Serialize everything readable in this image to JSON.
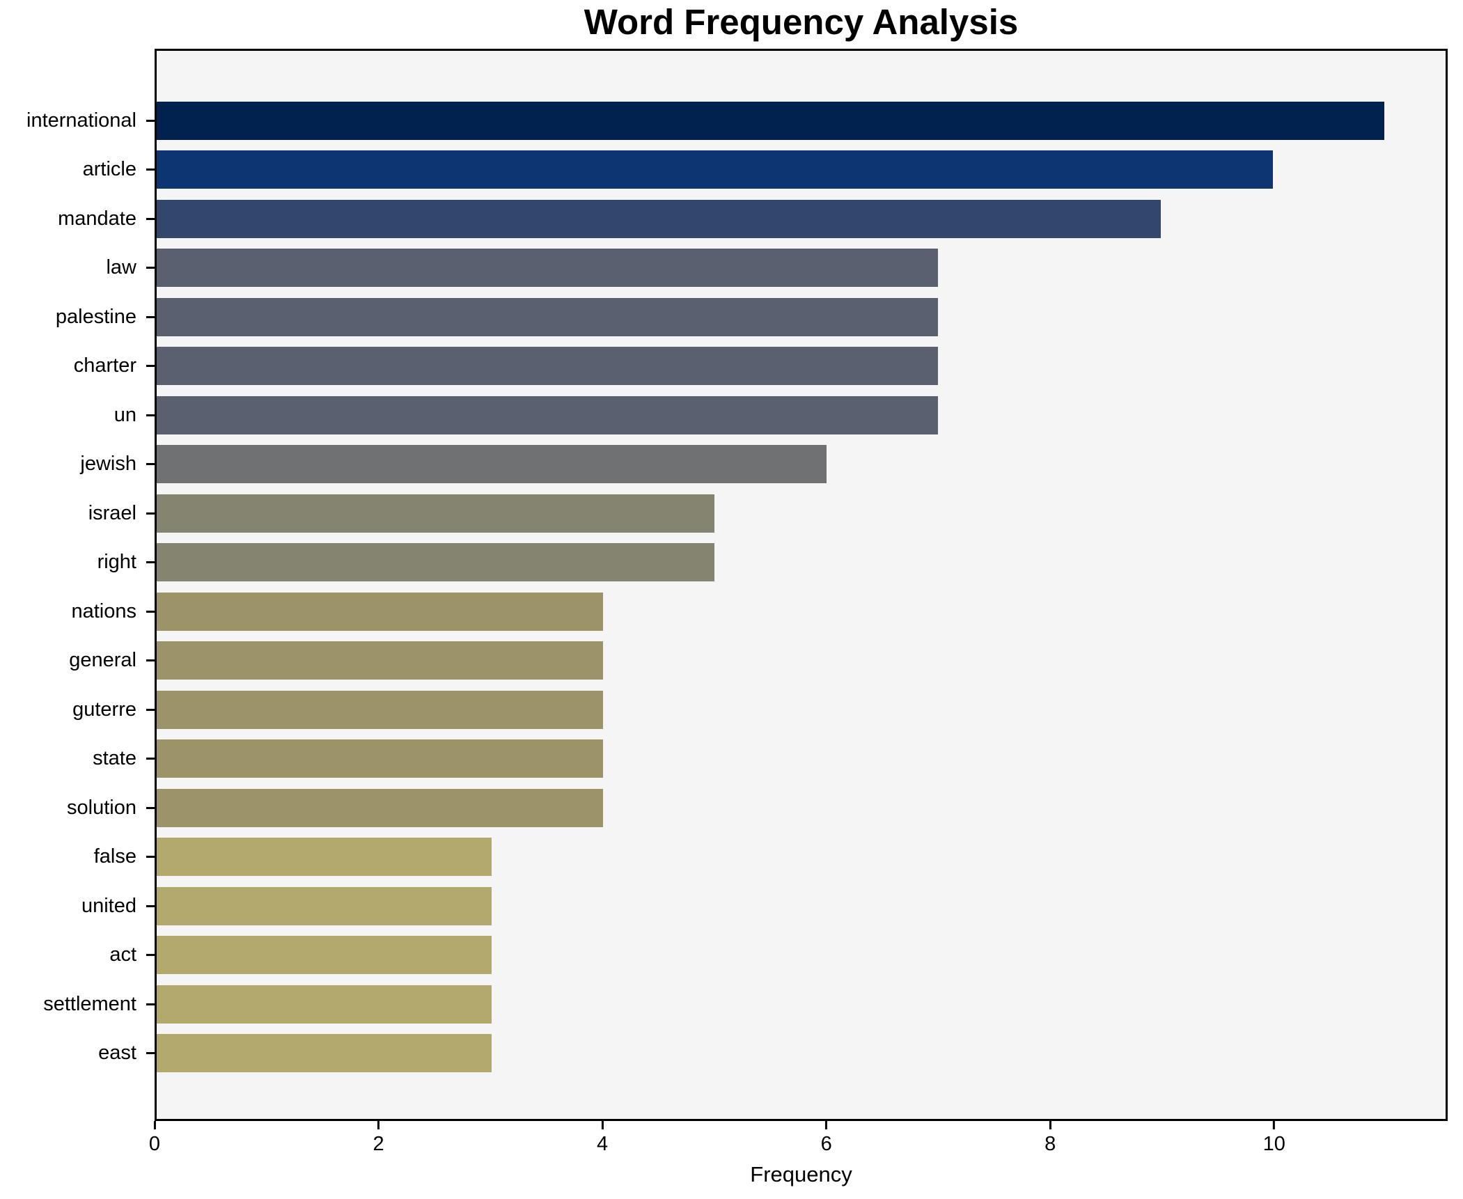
{
  "title": "Word Frequency Analysis",
  "chart_data": {
    "type": "bar",
    "orientation": "horizontal",
    "title": "Word Frequency Analysis",
    "xlabel": "Frequency",
    "ylabel": "",
    "categories": [
      "international",
      "article",
      "mandate",
      "law",
      "palestine",
      "charter",
      "un",
      "jewish",
      "israel",
      "right",
      "nations",
      "general",
      "guterre",
      "state",
      "solution",
      "false",
      "united",
      "act",
      "settlement",
      "east"
    ],
    "values": [
      11,
      10,
      9,
      7,
      7,
      7,
      7,
      6,
      5,
      5,
      4,
      4,
      4,
      4,
      4,
      3,
      3,
      3,
      3,
      3
    ],
    "bar_colors": [
      "#01224e",
      "#0d3571",
      "#33466c",
      "#5b6070",
      "#5b6070",
      "#5b6070",
      "#5b6070",
      "#6f7173",
      "#858470",
      "#858470",
      "#9c9369",
      "#9c9369",
      "#9c9369",
      "#9c9369",
      "#9c9369",
      "#b3a96c",
      "#b3a96c",
      "#b3a96c",
      "#b3a96c",
      "#b3a96c"
    ],
    "xlim": [
      0,
      11.55
    ],
    "xticks": [
      0,
      2,
      4,
      6,
      8,
      10
    ],
    "grid": false,
    "legend": false,
    "plot_bg": "#f5f5f6",
    "figure_bg": "#ffffff",
    "spine_color": "#000000",
    "text_color": "#000000"
  }
}
